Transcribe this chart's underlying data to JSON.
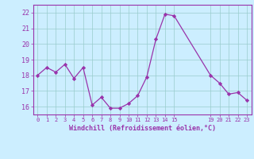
{
  "x": [
    0,
    1,
    2,
    3,
    4,
    5,
    6,
    7,
    8,
    9,
    10,
    11,
    12,
    13,
    14,
    15,
    19,
    20,
    21,
    22,
    23
  ],
  "y": [
    18.0,
    18.5,
    18.2,
    18.7,
    17.8,
    18.5,
    16.1,
    16.6,
    15.9,
    15.9,
    16.2,
    16.7,
    17.9,
    20.3,
    21.9,
    21.8,
    18.0,
    17.5,
    16.8,
    16.9,
    16.4
  ],
  "line_color": "#9933aa",
  "marker_color": "#9933aa",
  "bg_color": "#cceeff",
  "grid_color": "#99cccc",
  "xlabel": "Windchill (Refroidissement éolien,°C)",
  "xlabel_color": "#9933aa",
  "tick_color": "#9933aa",
  "ylim_min": 15.5,
  "ylim_max": 22.5,
  "xlim_min": -0.5,
  "xlim_max": 23.5,
  "yticks": [
    16,
    17,
    18,
    19,
    20,
    21,
    22
  ],
  "xtick_positions": [
    0,
    1,
    2,
    3,
    4,
    5,
    6,
    7,
    8,
    9,
    10,
    11,
    12,
    13,
    14,
    15,
    19,
    20,
    21,
    22,
    23
  ],
  "xtick_labels": [
    "0",
    "1",
    "2",
    "3",
    "4",
    "5",
    "6",
    "7",
    "8",
    "9",
    "10",
    "11",
    "12",
    "13",
    "14",
    "15",
    "19",
    "20",
    "21",
    "22",
    "23"
  ]
}
